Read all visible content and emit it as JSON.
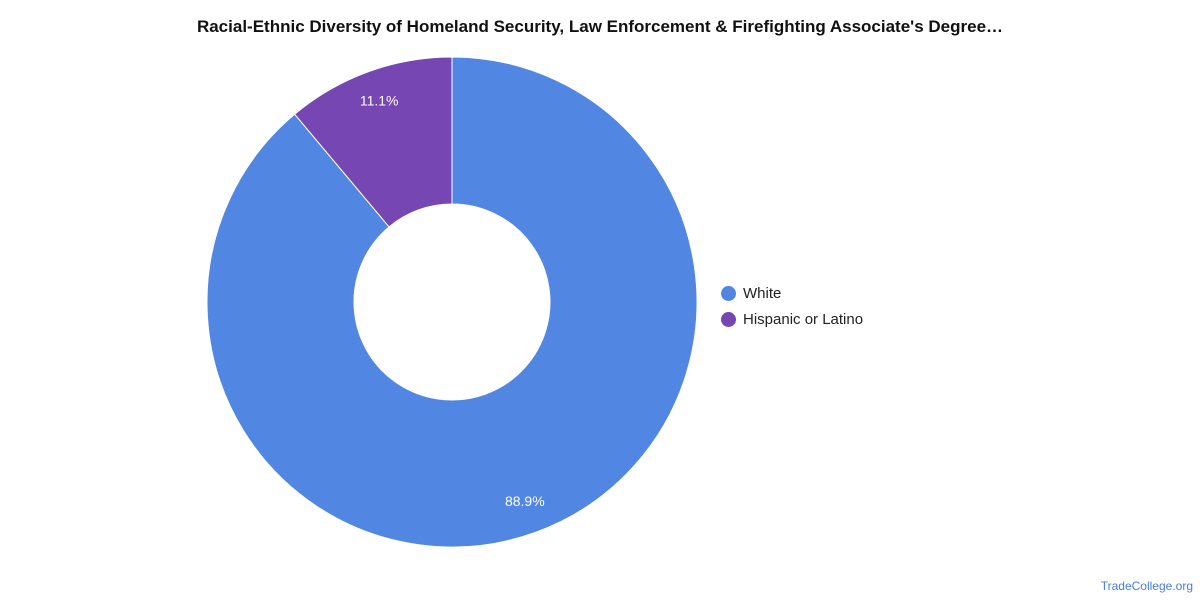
{
  "chart_data": {
    "type": "pie",
    "donut": true,
    "title": "Racial-Ethnic Diversity of Homeland Security, Law Enforcement & Firefighting Associate's Degree…",
    "slices": [
      {
        "label": "White",
        "value": 88.9,
        "value_label": "88.9%",
        "color": "#5186e3"
      },
      {
        "label": "Hispanic or Latino",
        "value": 11.1,
        "value_label": "11.1%",
        "color": "#7646b2"
      }
    ],
    "legend_position": "right"
  },
  "watermark": "TradeCollege.org"
}
